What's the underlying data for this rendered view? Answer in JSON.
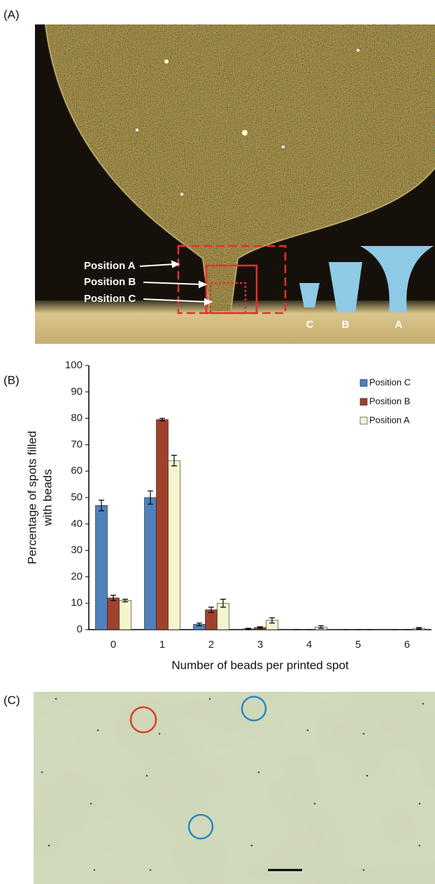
{
  "panels": {
    "a": {
      "label": "(A)",
      "annotations": [
        "Position A",
        "Position B",
        "Position C"
      ],
      "shape_labels": [
        "C",
        "B",
        "A"
      ]
    },
    "c": {
      "label": "(C)"
    }
  },
  "chart_data": {
    "type": "bar",
    "panel_label": "(B)",
    "xlabel": "Number of beads per printed spot",
    "ylabel": [
      "Percentage of spots filled",
      "with beads"
    ],
    "categories": [
      "0",
      "1",
      "2",
      "3",
      "4",
      "5",
      "6"
    ],
    "series": [
      {
        "name": "Position C",
        "color": "#4f81bd",
        "values": [
          47,
          50,
          2,
          0.3,
          0,
          0,
          0
        ],
        "errors": [
          2,
          2.5,
          0.5,
          0.2,
          0,
          0,
          0
        ]
      },
      {
        "name": "Position B",
        "color": "#a0412c",
        "values": [
          12,
          79.5,
          7.5,
          0.8,
          0,
          0,
          0
        ],
        "errors": [
          1,
          0.5,
          1,
          0.3,
          0,
          0,
          0
        ]
      },
      {
        "name": "Position A",
        "color": "#f5f5cc",
        "values": [
          11,
          64,
          10,
          3.5,
          1,
          0,
          0.5
        ],
        "errors": [
          0.5,
          2,
          1.5,
          1,
          0.5,
          0,
          0.3
        ]
      }
    ],
    "ylim": [
      0,
      100
    ],
    "yticks": [
      0,
      10,
      20,
      30,
      40,
      50,
      60,
      70,
      80,
      90,
      100
    ],
    "grid": false,
    "legend": "top-right"
  }
}
